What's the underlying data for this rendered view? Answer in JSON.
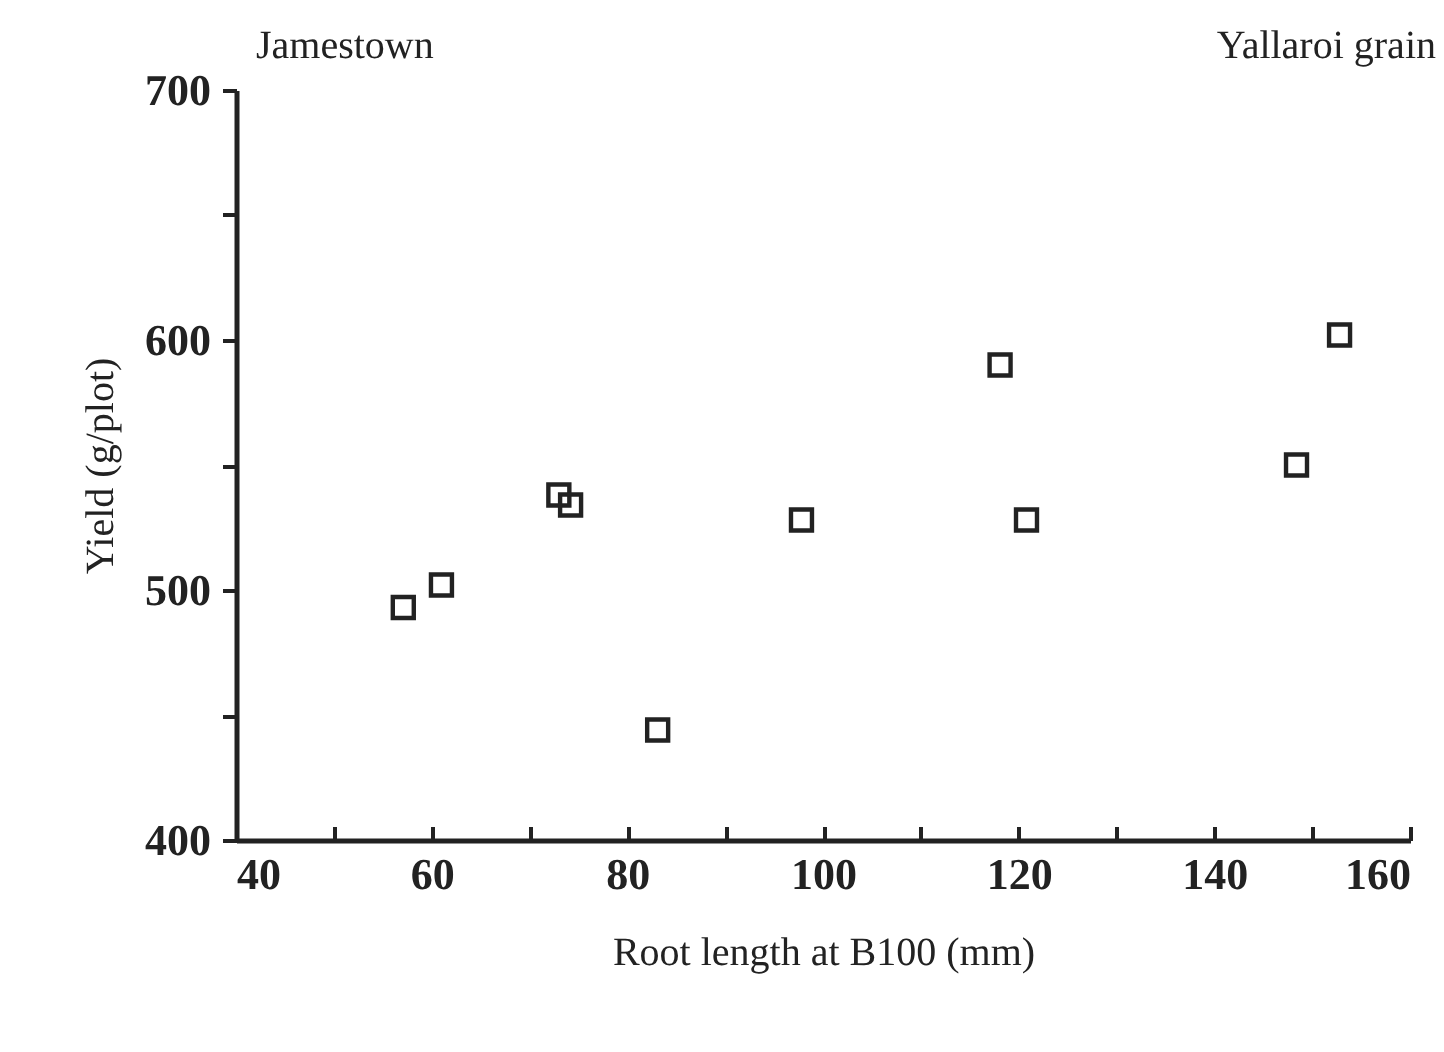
{
  "chart_data": {
    "type": "scatter",
    "xlabel": "Root length at B100 (mm)",
    "ylabel": "Yield (g/plot)",
    "annotations": [
      "Jamestown",
      "Yallaroi grain"
    ],
    "x": [
      57.1,
      61.0,
      73.0,
      74.2,
      83.1,
      97.8,
      118.1,
      120.8,
      148.4,
      152.8
    ],
    "series": [
      {
        "color": "#222222",
        "values": [
          493,
          502,
          538,
          534,
          444,
          528,
          590,
          528,
          550,
          602
        ]
      }
    ],
    "xlim": [
      40,
      160
    ],
    "ylim": [
      400,
      700
    ],
    "xticks": [
      40,
      {
        "value": 50,
        "label": null
      },
      60,
      {
        "value": 70,
        "label": null
      },
      80,
      {
        "value": 90,
        "label": null
      },
      100,
      {
        "value": 110,
        "label": null
      },
      120,
      {
        "value": 130,
        "label": null
      },
      140,
      {
        "value": 150,
        "label": null
      },
      160
    ],
    "yticks": [
      400,
      {
        "value": 450,
        "label": null
      },
      500,
      {
        "value": 550,
        "label": null
      },
      600,
      {
        "value": 650,
        "label": null
      },
      700
    ],
    "marker": "square",
    "grid": false,
    "legend": false
  }
}
